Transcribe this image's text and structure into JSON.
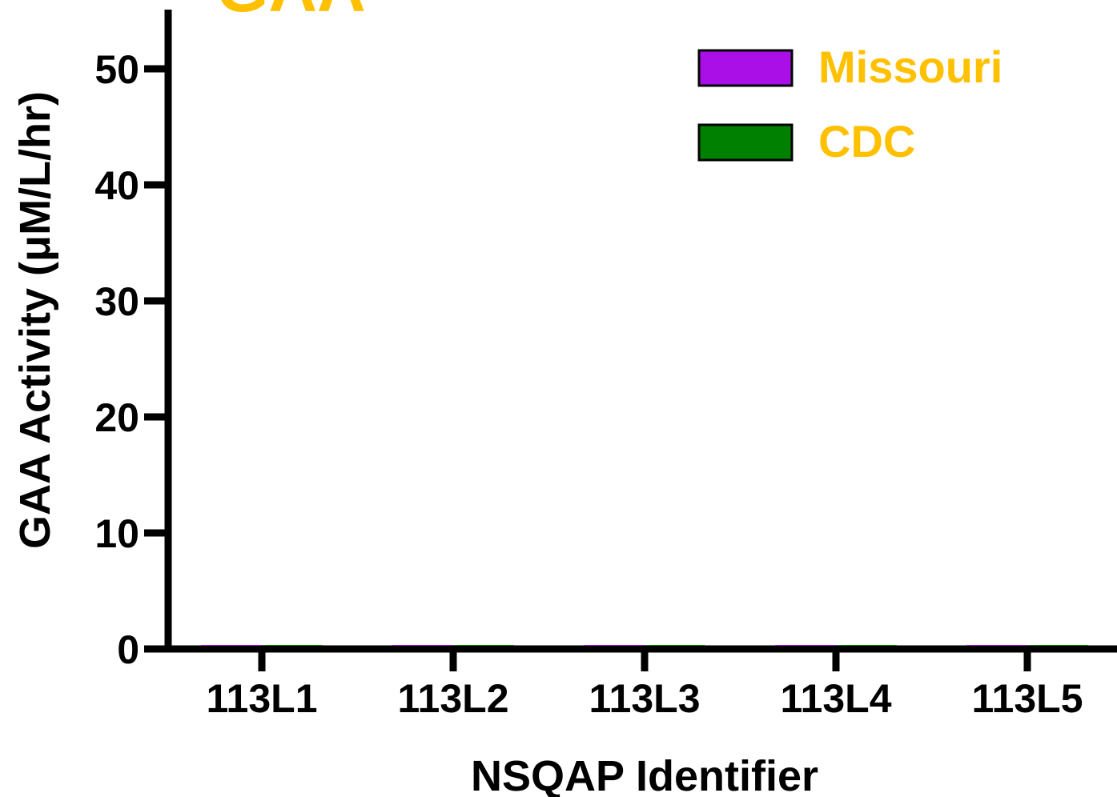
{
  "chart_data": {
    "type": "bar",
    "title": "GAA",
    "xlabel": "NSQAP Identifier",
    "ylabel": "GAA Activity (μM/L/hr)",
    "categories": [
      "113L1",
      "113L2",
      "113L3",
      "113L4",
      "113L5"
    ],
    "series": [
      {
        "name": "Missouri",
        "color": "#AA0FE8",
        "values": [
          0.1,
          0.1,
          0.1,
          0.1,
          0.1
        ]
      },
      {
        "name": "CDC",
        "color": "#008000",
        "values": [
          0.1,
          0.1,
          0.1,
          0.1,
          0.1
        ]
      }
    ],
    "ylim": [
      0,
      50
    ],
    "yticks": [
      0,
      10,
      20,
      30,
      40,
      50
    ],
    "grid": false,
    "legend_position": "top-right",
    "text_accent_color": "#FFC000"
  }
}
